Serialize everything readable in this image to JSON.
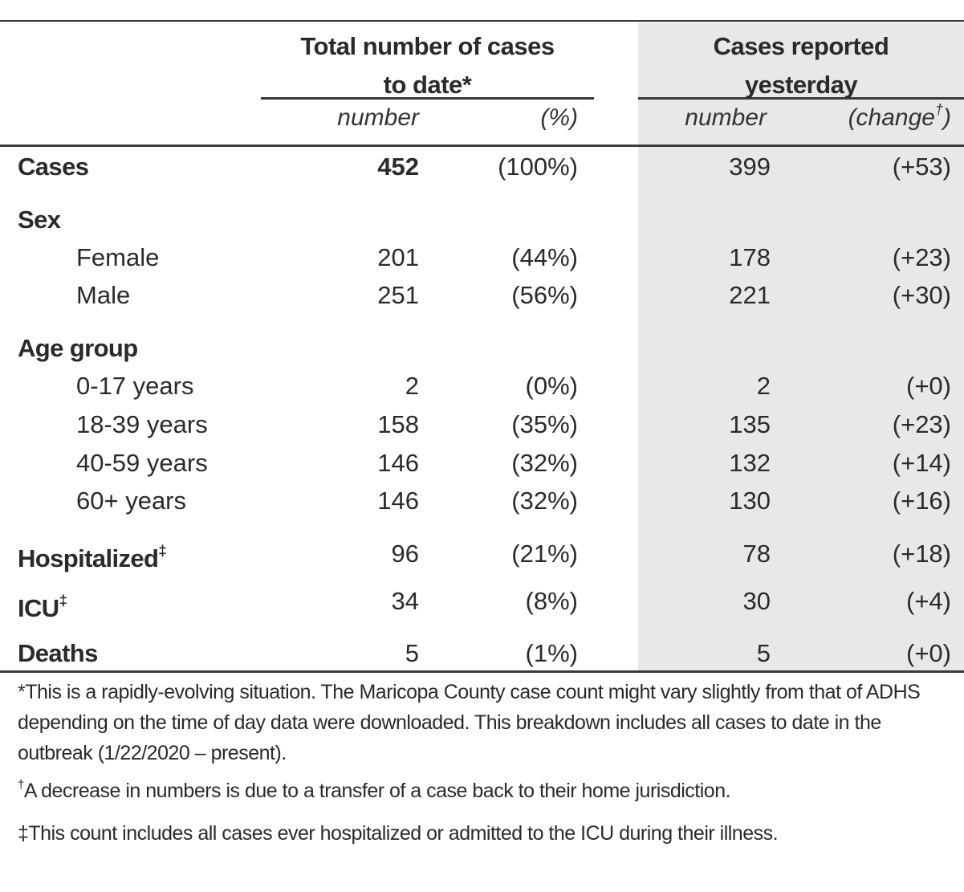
{
  "header": {
    "total_group": "Total number of cases to date*",
    "yesterday_group": "Cases reported yesterday",
    "sub_number": "number",
    "sub_pct": "(%)",
    "sub_number2": "number",
    "sub_change": "(change",
    "sub_change_mark": "†",
    "sub_change_close": ")"
  },
  "rows": {
    "cases": {
      "label": "Cases",
      "number": "452",
      "pct": "(100%)",
      "yesterday": "399",
      "change": "(+53)"
    },
    "sex": {
      "label": "Sex"
    },
    "female": {
      "label": "Female",
      "number": "201",
      "pct": "(44%)",
      "yesterday": "178",
      "change": "(+23)"
    },
    "male": {
      "label": "Male",
      "number": "251",
      "pct": "(56%)",
      "yesterday": "221",
      "change": "(+30)"
    },
    "age": {
      "label": "Age group"
    },
    "a0_17": {
      "label": "0-17 years",
      "number": "2",
      "pct": "(0%)",
      "yesterday": "2",
      "change": "(+0)"
    },
    "a18_39": {
      "label": "18-39 years",
      "number": "158",
      "pct": "(35%)",
      "yesterday": "135",
      "change": "(+23)"
    },
    "a40_59": {
      "label": "40-59 years",
      "number": "146",
      "pct": "(32%)",
      "yesterday": "132",
      "change": "(+14)"
    },
    "a60": {
      "label": "60+ years",
      "number": "146",
      "pct": "(32%)",
      "yesterday": "130",
      "change": "(+16)"
    },
    "hospitalized": {
      "label": "Hospitalized",
      "mark": "‡",
      "number": "96",
      "pct": "(21%)",
      "yesterday": "78",
      "change": "(+18)"
    },
    "icu": {
      "label": "ICU",
      "mark": "‡",
      "number": "34",
      "pct": "(8%)",
      "yesterday": "30",
      "change": "(+4)"
    },
    "deaths": {
      "label": "Deaths",
      "number": "5",
      "pct": "(1%)",
      "yesterday": "5",
      "change": "(+0)"
    }
  },
  "footnotes": {
    "star": "*This is a rapidly-evolving situation.  The Maricopa County case count might vary slightly from that of ADHS depending on the time of day data were downloaded.  This breakdown includes all cases to date in the outbreak (1/22/2020 – present).",
    "dagger_mark": "†",
    "dagger": "A decrease in numbers is due to a transfer of a case back to their home jurisdiction.",
    "ddagger": "‡This count includes all cases ever hospitalized or admitted to the ICU during their illness."
  }
}
